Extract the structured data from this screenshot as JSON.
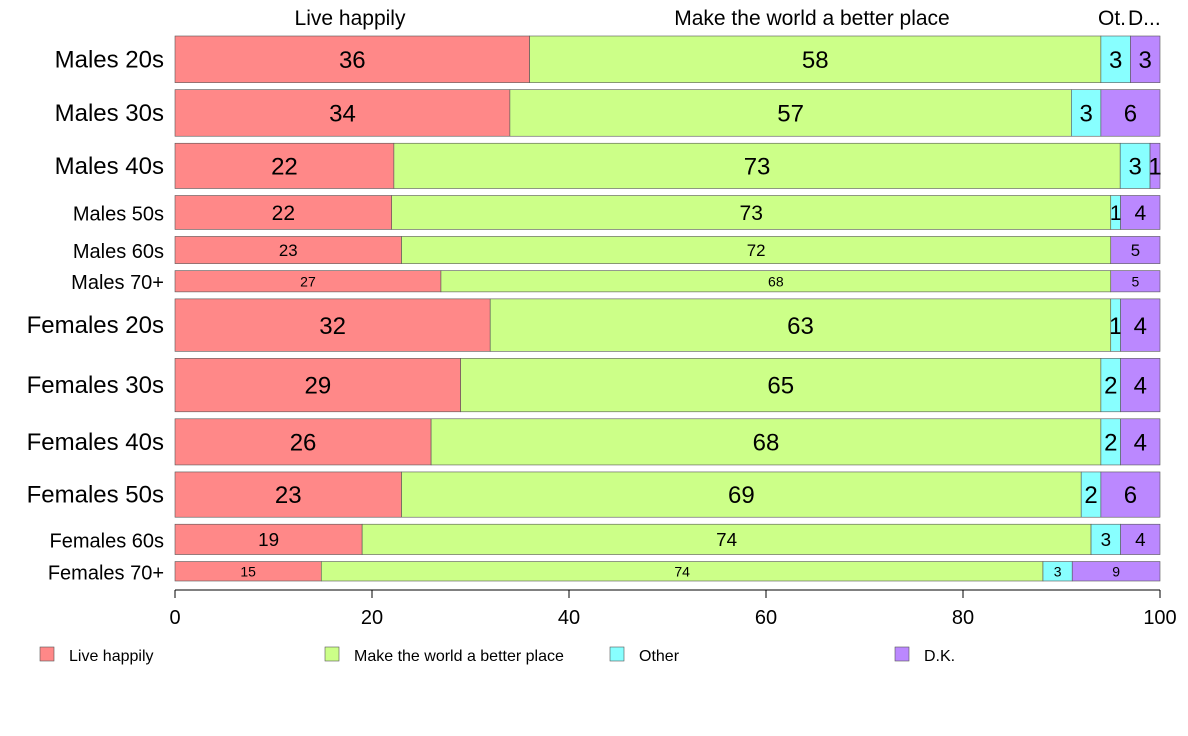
{
  "chart_data": {
    "type": "bar",
    "orientation": "horizontal",
    "stacked": true,
    "categories": [
      "Males 20s",
      "Males 30s",
      "Males 40s",
      "Males 50s",
      "Males 60s",
      "Males 70+",
      "Females 20s",
      "Females 30s",
      "Females 40s",
      "Females 50s",
      "Females 60s",
      "Females 70+"
    ],
    "series": [
      {
        "name": "Live happily",
        "color": "#ff8888",
        "values": [
          36,
          34,
          22,
          22,
          23,
          27,
          32,
          29,
          26,
          23,
          19,
          15
        ]
      },
      {
        "name": "Make the world a better place",
        "color": "#ccff88",
        "values": [
          58,
          57,
          73,
          73,
          72,
          68,
          63,
          65,
          68,
          69,
          74,
          74
        ]
      },
      {
        "name": "Other",
        "color": "#88ffff",
        "values": [
          3,
          3,
          3,
          1,
          0,
          0,
          1,
          2,
          2,
          2,
          3,
          3
        ]
      },
      {
        "name": "D.K.",
        "color": "#bb88ff",
        "values": [
          3,
          6,
          1,
          4,
          5,
          5,
          4,
          4,
          4,
          6,
          4,
          9
        ]
      }
    ],
    "top_labels": [
      "Live happily",
      "Make the world a better place",
      "Ot.",
      "D..."
    ],
    "x_ticks": [
      "0",
      "20",
      "40",
      "60",
      "80",
      "100"
    ],
    "xlim": [
      0,
      100
    ],
    "legend_position": "bottom",
    "grid": false
  }
}
